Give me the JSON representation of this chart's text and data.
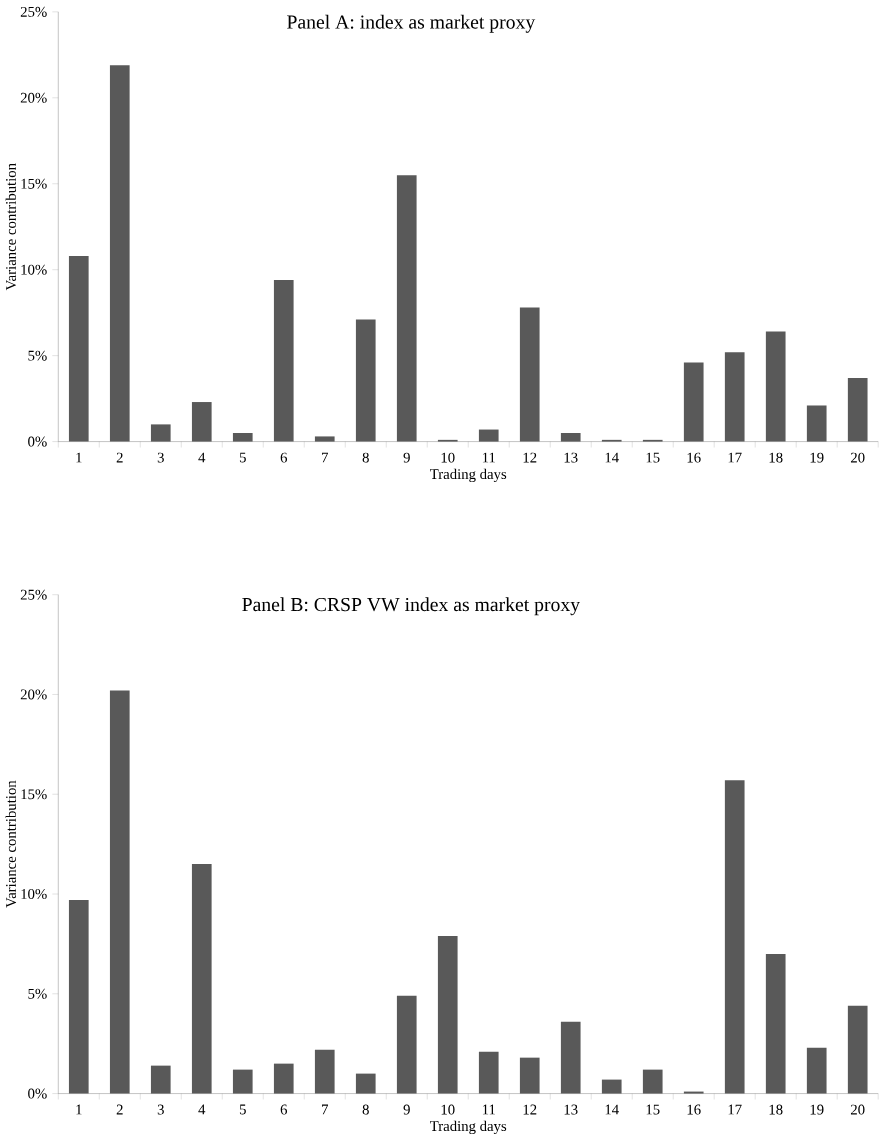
{
  "chart_data": [
    {
      "type": "bar",
      "title": "Panel A: index as market proxy",
      "xlabel": "Trading days",
      "ylabel": "Variance contribution",
      "categories": [
        "1",
        "2",
        "3",
        "4",
        "5",
        "6",
        "7",
        "8",
        "9",
        "10",
        "11",
        "12",
        "13",
        "14",
        "15",
        "16",
        "17",
        "18",
        "19",
        "20"
      ],
      "values": [
        10.8,
        21.9,
        1.0,
        2.3,
        0.5,
        9.4,
        0.3,
        7.1,
        15.5,
        0.1,
        0.7,
        7.8,
        0.5,
        0.1,
        0.1,
        4.6,
        5.2,
        6.4,
        2.1,
        3.7
      ],
      "color": "#595959",
      "ylim": [
        0,
        25
      ],
      "yticks": [
        {
          "value": 0,
          "label": "0%"
        },
        {
          "value": 5,
          "label": "5%"
        },
        {
          "value": 10,
          "label": "10%"
        },
        {
          "value": 15,
          "label": "15%"
        },
        {
          "value": 20,
          "label": "20%"
        },
        {
          "value": 25,
          "label": "25%"
        }
      ],
      "grid": false
    },
    {
      "type": "bar",
      "title": "Panel B: CRSP VW index as market proxy",
      "xlabel": "Trading days",
      "ylabel": "Variance contribution",
      "categories": [
        "1",
        "2",
        "3",
        "4",
        "5",
        "6",
        "7",
        "8",
        "9",
        "10",
        "11",
        "12",
        "13",
        "14",
        "15",
        "16",
        "17",
        "18",
        "19",
        "20"
      ],
      "values": [
        9.7,
        20.2,
        1.4,
        11.5,
        1.2,
        1.5,
        2.2,
        1.0,
        4.9,
        7.9,
        2.1,
        1.8,
        3.6,
        0.7,
        1.2,
        0.1,
        15.7,
        7.0,
        2.3,
        4.4
      ],
      "color": "#595959",
      "ylim": [
        0,
        25
      ],
      "yticks": [
        {
          "value": 0,
          "label": "0%"
        },
        {
          "value": 5,
          "label": "5%"
        },
        {
          "value": 10,
          "label": "10%"
        },
        {
          "value": 15,
          "label": "15%"
        },
        {
          "value": 20,
          "label": "20%"
        },
        {
          "value": 25,
          "label": "25%"
        }
      ],
      "grid": false
    }
  ]
}
